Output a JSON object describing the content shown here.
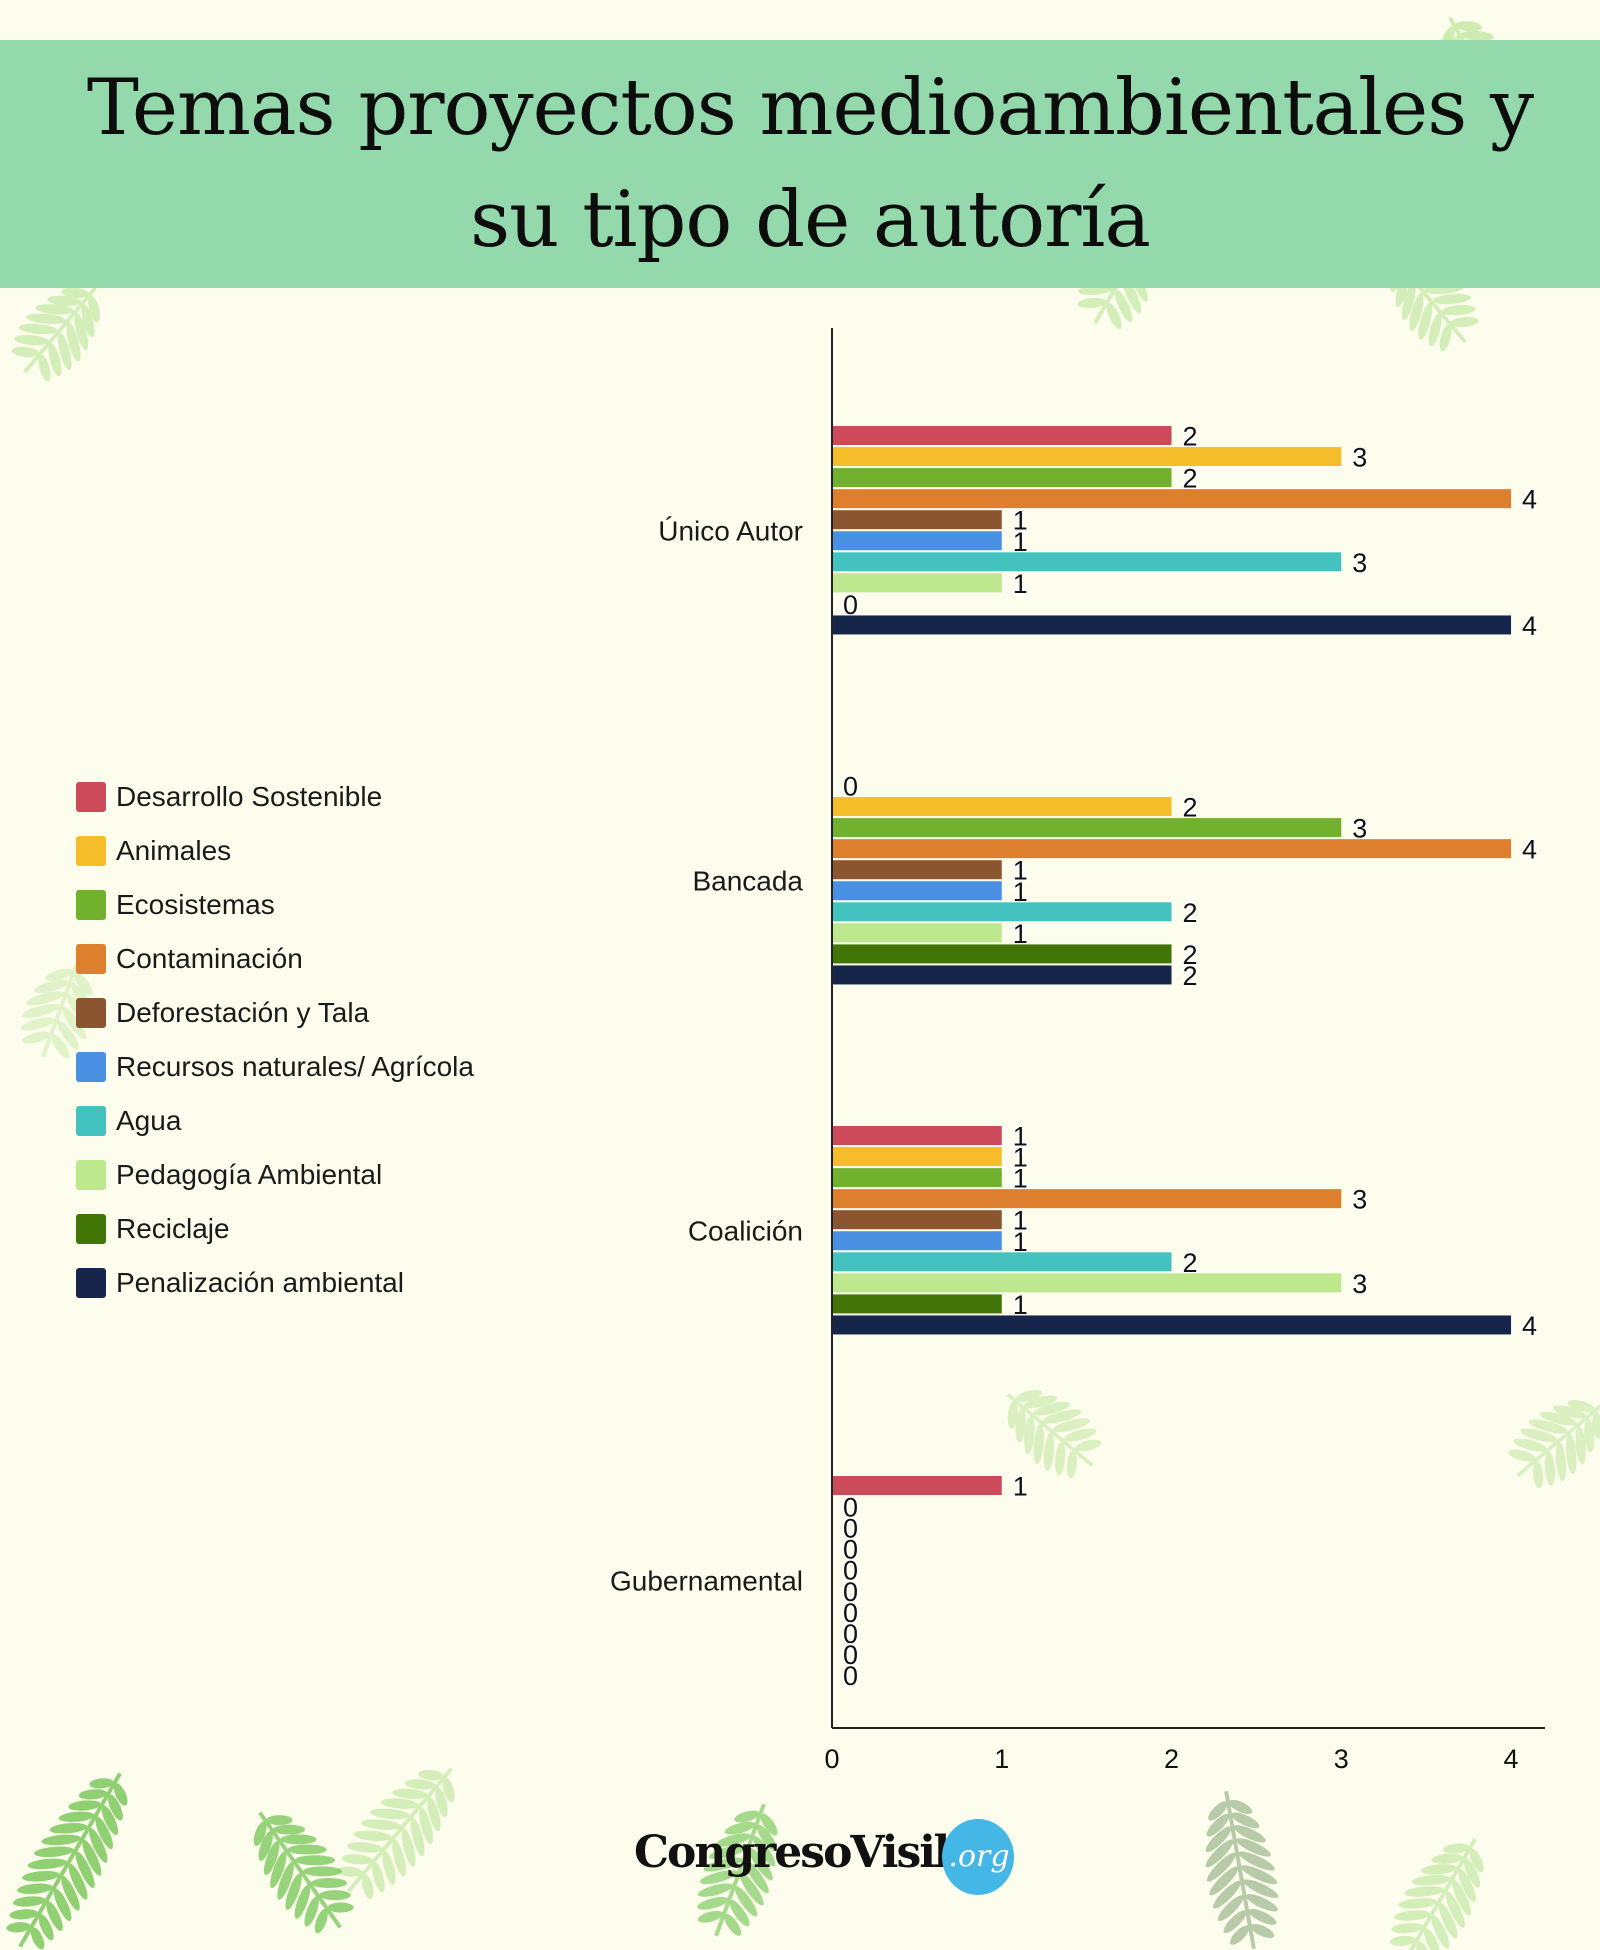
{
  "title": "Temas proyectos medioambientales y su tipo de autoría",
  "colors": {
    "background": "#fdfdee",
    "banner": "#93d9ab",
    "leaf_dark": "#6cc24a",
    "leaf_light": "#c3e9a4"
  },
  "chart_data": {
    "type": "bar",
    "orientation": "horizontal",
    "categories": [
      "Único Autor",
      "Bancada",
      "Coalición",
      "Gubernamental"
    ],
    "series": [
      {
        "name": "Desarrollo Sostenible",
        "color": "#cc4a5a",
        "values": [
          2,
          0,
          1,
          1
        ]
      },
      {
        "name": "Animales",
        "color": "#f5bd2a",
        "values": [
          3,
          2,
          1,
          0
        ]
      },
      {
        "name": "Ecosistemas",
        "color": "#71b12e",
        "values": [
          2,
          3,
          1,
          0
        ]
      },
      {
        "name": "Contaminación",
        "color": "#de7f2e",
        "values": [
          4,
          4,
          3,
          0
        ]
      },
      {
        "name": "Deforestación y Tala",
        "color": "#8b5530",
        "values": [
          1,
          1,
          1,
          0
        ]
      },
      {
        "name": "Recursos naturales/ Agrícola",
        "color": "#4a90e2",
        "values": [
          1,
          1,
          1,
          0
        ]
      },
      {
        "name": "Agua",
        "color": "#44c2c0",
        "values": [
          3,
          2,
          2,
          0
        ]
      },
      {
        "name": "Pedagogía  Ambiental",
        "color": "#bde88e",
        "values": [
          1,
          1,
          3,
          0
        ]
      },
      {
        "name": "Reciclaje",
        "color": "#417505",
        "values": [
          0,
          2,
          1,
          0
        ]
      },
      {
        "name": "Penalización ambiental",
        "color": "#15264a",
        "values": [
          4,
          2,
          4,
          0
        ]
      }
    ],
    "x_ticks": [
      "0",
      "1",
      "2",
      "3",
      "4"
    ],
    "xlim": [
      0,
      4.2
    ],
    "legend_position": "left",
    "grid": false
  },
  "brand": {
    "name": "CongresoVisible",
    "suffix": ".org"
  }
}
